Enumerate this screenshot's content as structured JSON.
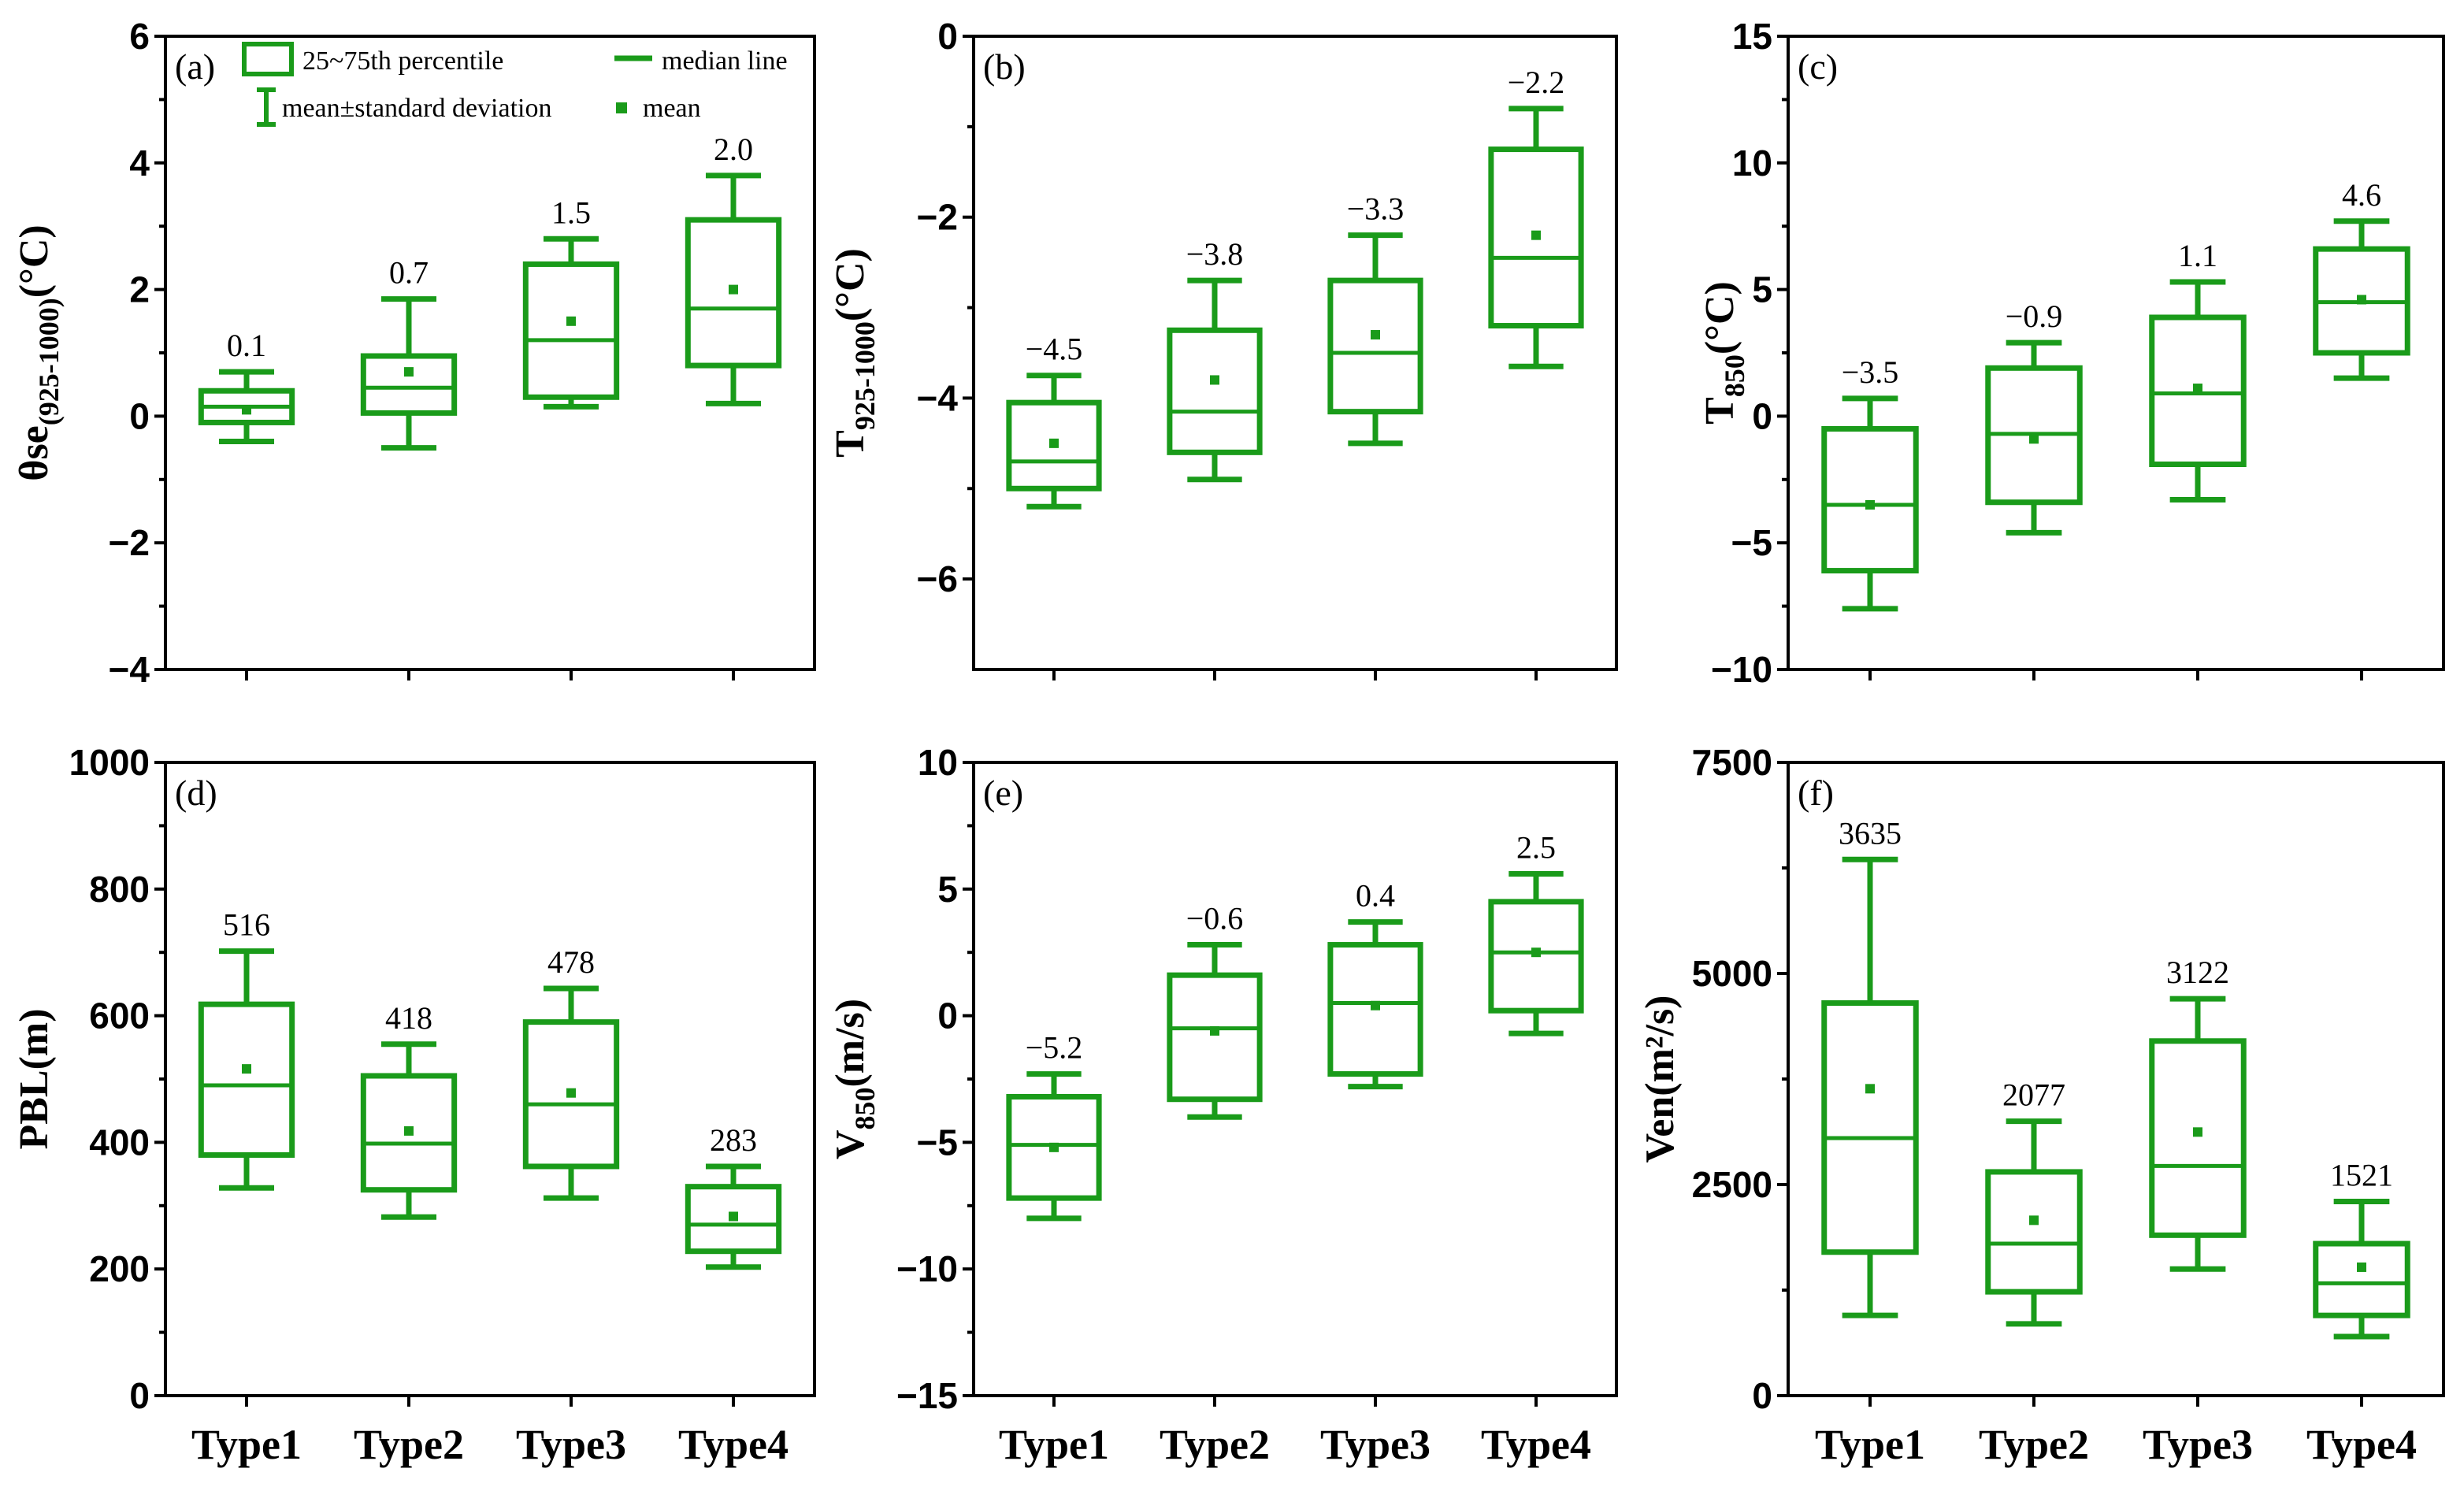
{
  "colors": {
    "box": "#1a9b1a",
    "axis": "#000000"
  },
  "legend": {
    "box_label": "25~75th percentile",
    "median_label": "median line",
    "whisker_label": "mean±standard deviation",
    "mean_label": "mean"
  },
  "chart_data": [
    {
      "type": "box",
      "panel": "(a)",
      "ylabel": {
        "main": "θse",
        "sub": "(925-1000)",
        "unit": "(°C)"
      },
      "ylim": [
        -4,
        6
      ],
      "yticks": [
        -4,
        -2,
        0,
        2,
        4,
        6
      ],
      "ytick_labels": [
        "−4",
        "−2",
        "0",
        "2",
        "4",
        "6"
      ],
      "categories": [
        "Type1",
        "Type2",
        "Type3",
        "Type4"
      ],
      "boxes": [
        {
          "whisker_low": -0.4,
          "q1": -0.1,
          "median": 0.15,
          "q3": 0.4,
          "whisker_high": 0.7,
          "mean": 0.1,
          "mean_label": "0.1"
        },
        {
          "whisker_low": -0.5,
          "q1": 0.05,
          "median": 0.45,
          "q3": 0.95,
          "whisker_high": 1.85,
          "mean": 0.7,
          "mean_label": "0.7"
        },
        {
          "whisker_low": 0.15,
          "q1": 0.3,
          "median": 1.2,
          "q3": 2.4,
          "whisker_high": 2.8,
          "mean": 1.5,
          "mean_label": "1.5"
        },
        {
          "whisker_low": 0.2,
          "q1": 0.8,
          "median": 1.7,
          "q3": 3.1,
          "whisker_high": 3.8,
          "mean": 2.0,
          "mean_label": "2.0"
        }
      ],
      "show_legend": true,
      "show_xlabels": false
    },
    {
      "type": "box",
      "panel": "(b)",
      "ylabel": {
        "main": "T",
        "sub": "925-1000",
        "unit": "(°C)"
      },
      "ylim": [
        -7,
        0
      ],
      "yticks": [
        -6,
        -4,
        -2,
        0
      ],
      "ytick_labels": [
        "−6",
        "−4",
        "−2",
        "0"
      ],
      "categories": [
        "Type1",
        "Type2",
        "Type3",
        "Type4"
      ],
      "boxes": [
        {
          "whisker_low": -5.2,
          "q1": -5.0,
          "median": -4.7,
          "q3": -4.05,
          "whisker_high": -3.75,
          "mean": -4.5,
          "mean_label": "−4.5"
        },
        {
          "whisker_low": -4.9,
          "q1": -4.6,
          "median": -4.15,
          "q3": -3.25,
          "whisker_high": -2.7,
          "mean": -3.8,
          "mean_label": "−3.8"
        },
        {
          "whisker_low": -4.5,
          "q1": -4.15,
          "median": -3.5,
          "q3": -2.7,
          "whisker_high": -2.2,
          "mean": -3.3,
          "mean_label": "−3.3"
        },
        {
          "whisker_low": -3.65,
          "q1": -3.2,
          "median": -2.45,
          "q3": -1.25,
          "whisker_high": -0.8,
          "mean": -2.2,
          "mean_label": "−2.2"
        }
      ],
      "show_legend": false,
      "show_xlabels": false
    },
    {
      "type": "box",
      "panel": "(c)",
      "ylabel": {
        "main": "T",
        "sub": "850",
        "unit": "(°C)"
      },
      "ylim": [
        -10,
        15
      ],
      "yticks": [
        -10,
        -5,
        0,
        5,
        10,
        15
      ],
      "ytick_labels": [
        "−10",
        "−5",
        "0",
        "5",
        "10",
        "15"
      ],
      "categories": [
        "Type1",
        "Type2",
        "Type3",
        "Type4"
      ],
      "boxes": [
        {
          "whisker_low": -7.6,
          "q1": -6.1,
          "median": -3.5,
          "q3": -0.5,
          "whisker_high": 0.7,
          "mean": -3.5,
          "mean_label": "−3.5"
        },
        {
          "whisker_low": -4.6,
          "q1": -3.4,
          "median": -0.7,
          "q3": 1.9,
          "whisker_high": 2.9,
          "mean": -0.9,
          "mean_label": "−0.9"
        },
        {
          "whisker_low": -3.3,
          "q1": -1.9,
          "median": 0.9,
          "q3": 3.9,
          "whisker_high": 5.3,
          "mean": 1.1,
          "mean_label": "1.1"
        },
        {
          "whisker_low": 1.5,
          "q1": 2.5,
          "median": 4.5,
          "q3": 6.6,
          "whisker_high": 7.7,
          "mean": 4.6,
          "mean_label": "4.6"
        }
      ],
      "show_legend": false,
      "show_xlabels": false
    },
    {
      "type": "box",
      "panel": "(d)",
      "ylabel": {
        "main": "PBL",
        "sub": "",
        "unit": "(m)"
      },
      "ylim": [
        0,
        1000
      ],
      "yticks": [
        0,
        200,
        400,
        600,
        800,
        1000
      ],
      "ytick_labels": [
        "0",
        "200",
        "400",
        "600",
        "800",
        "1000"
      ],
      "categories": [
        "Type1",
        "Type2",
        "Type3",
        "Type4"
      ],
      "boxes": [
        {
          "whisker_low": 328,
          "q1": 380,
          "median": 490,
          "q3": 618,
          "whisker_high": 702,
          "mean": 516,
          "mean_label": "516"
        },
        {
          "whisker_low": 282,
          "q1": 325,
          "median": 398,
          "q3": 505,
          "whisker_high": 555,
          "mean": 418,
          "mean_label": "418"
        },
        {
          "whisker_low": 312,
          "q1": 362,
          "median": 460,
          "q3": 590,
          "whisker_high": 643,
          "mean": 478,
          "mean_label": "478"
        },
        {
          "whisker_low": 203,
          "q1": 228,
          "median": 270,
          "q3": 330,
          "whisker_high": 362,
          "mean": 283,
          "mean_label": "283"
        }
      ],
      "show_legend": false,
      "show_xlabels": true
    },
    {
      "type": "box",
      "panel": "(e)",
      "ylabel": {
        "main": "V",
        "sub": "850",
        "unit": "(m/s)"
      },
      "ylim": [
        -15,
        10
      ],
      "yticks": [
        -15,
        -10,
        -5,
        0,
        5,
        10
      ],
      "ytick_labels": [
        "−15",
        "−10",
        "−5",
        "0",
        "5",
        "10"
      ],
      "categories": [
        "Type1",
        "Type2",
        "Type3",
        "Type4"
      ],
      "boxes": [
        {
          "whisker_low": -8.0,
          "q1": -7.2,
          "median": -5.1,
          "q3": -3.2,
          "whisker_high": -2.3,
          "mean": -5.2,
          "mean_label": "−5.2"
        },
        {
          "whisker_low": -4.0,
          "q1": -3.3,
          "median": -0.5,
          "q3": 1.6,
          "whisker_high": 2.8,
          "mean": -0.6,
          "mean_label": "−0.6"
        },
        {
          "whisker_low": -2.8,
          "q1": -2.3,
          "median": 0.5,
          "q3": 2.8,
          "whisker_high": 3.7,
          "mean": 0.4,
          "mean_label": "0.4"
        },
        {
          "whisker_low": -0.7,
          "q1": 0.2,
          "median": 2.5,
          "q3": 4.5,
          "whisker_high": 5.6,
          "mean": 2.5,
          "mean_label": "2.5"
        }
      ],
      "show_legend": false,
      "show_xlabels": true
    },
    {
      "type": "box",
      "panel": "(f)",
      "ylabel": {
        "main": "Ven",
        "sub": "",
        "unit": "(m²/s)"
      },
      "ylim": [
        0,
        7500
      ],
      "yticks": [
        0,
        2500,
        5000,
        7500
      ],
      "ytick_labels": [
        "0",
        "2500",
        "5000",
        "7500"
      ],
      "categories": [
        "Type1",
        "Type2",
        "Type3",
        "Type4"
      ],
      "boxes": [
        {
          "whisker_low": 950,
          "q1": 1700,
          "median": 3050,
          "q3": 4650,
          "whisker_high": 6350,
          "mean": 3635,
          "mean_label": "3635"
        },
        {
          "whisker_low": 850,
          "q1": 1230,
          "median": 1800,
          "q3": 2650,
          "whisker_high": 3250,
          "mean": 2077,
          "mean_label": "2077"
        },
        {
          "whisker_low": 1500,
          "q1": 1900,
          "median": 2720,
          "q3": 4200,
          "whisker_high": 4700,
          "mean": 3122,
          "mean_label": "3122"
        },
        {
          "whisker_low": 700,
          "q1": 950,
          "median": 1330,
          "q3": 1800,
          "whisker_high": 2300,
          "mean": 1521,
          "mean_label": "1521"
        }
      ],
      "show_legend": false,
      "show_xlabels": true
    }
  ]
}
